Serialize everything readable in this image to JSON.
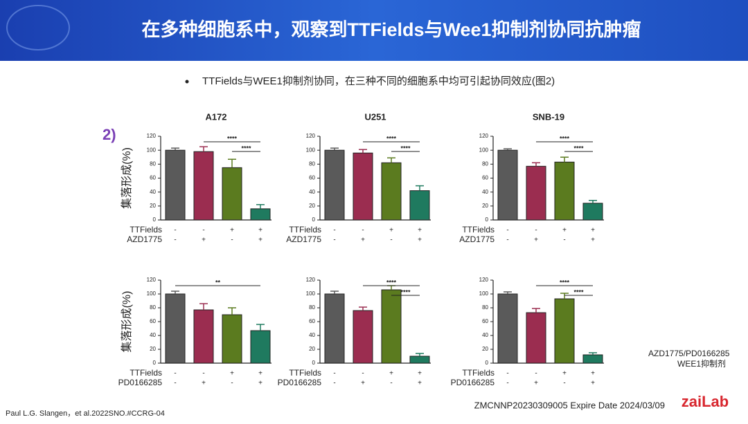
{
  "header": {
    "title": "在多种细胞系中，观察到TTFields与Wee1抑制剂协同抗肿瘤"
  },
  "bullet": "TTFields与WEE1抑制剂协同，在三种不同的细胞系中均可引起协同效应(图2)",
  "panel_label": "2)",
  "ylabel": "集落形成(%)",
  "chart_data": [
    {
      "type": "bar",
      "title": "A172",
      "values": [
        100,
        98,
        75,
        16
      ],
      "errors": [
        3,
        7,
        12,
        6
      ],
      "colors": [
        "#5a5a5a",
        "#9b2d50",
        "#5b7b1f",
        "#1f7a5f"
      ],
      "ylim": [
        0,
        120
      ],
      "yticks": [
        0,
        20,
        40,
        60,
        80,
        100,
        120
      ],
      "treatments": [
        {
          "name": "TTFields",
          "signs": [
            "-",
            "-",
            "+",
            "+"
          ]
        },
        {
          "name": "AZD1775",
          "signs": [
            "-",
            "+",
            "-",
            "+"
          ]
        }
      ],
      "significance": [
        {
          "label": "****",
          "from": 1,
          "to": 3
        },
        {
          "label": "****",
          "from": 2,
          "to": 3
        }
      ]
    },
    {
      "type": "bar",
      "title": "U251",
      "values": [
        100,
        96,
        82,
        42
      ],
      "errors": [
        3,
        5,
        7,
        7
      ],
      "colors": [
        "#5a5a5a",
        "#9b2d50",
        "#5b7b1f",
        "#1f7a5f"
      ],
      "ylim": [
        0,
        120
      ],
      "yticks": [
        0,
        20,
        40,
        60,
        80,
        100,
        120
      ],
      "treatments": [
        {
          "name": "TTFields",
          "signs": [
            "-",
            "-",
            "+",
            "+"
          ]
        },
        {
          "name": "AZD1775",
          "signs": [
            "-",
            "+",
            "-",
            "+"
          ]
        }
      ],
      "significance": [
        {
          "label": "****",
          "from": 1,
          "to": 3
        },
        {
          "label": "****",
          "from": 2,
          "to": 3
        }
      ]
    },
    {
      "type": "bar",
      "title": "SNB-19",
      "values": [
        100,
        77,
        83,
        24
      ],
      "errors": [
        2,
        5,
        7,
        4
      ],
      "colors": [
        "#5a5a5a",
        "#9b2d50",
        "#5b7b1f",
        "#1f7a5f"
      ],
      "ylim": [
        0,
        120
      ],
      "yticks": [
        0,
        20,
        40,
        60,
        80,
        100,
        120
      ],
      "treatments": [
        {
          "name": "TTFields",
          "signs": [
            "-",
            "-",
            "+",
            "+"
          ]
        },
        {
          "name": "AZD1775",
          "signs": [
            "-",
            "+",
            "-",
            "+"
          ]
        }
      ],
      "significance": [
        {
          "label": "****",
          "from": 1,
          "to": 3
        },
        {
          "label": "****",
          "from": 2,
          "to": 3
        }
      ]
    },
    {
      "type": "bar",
      "values": [
        100,
        77,
        70,
        47
      ],
      "errors": [
        4,
        9,
        10,
        9
      ],
      "colors": [
        "#5a5a5a",
        "#9b2d50",
        "#5b7b1f",
        "#1f7a5f"
      ],
      "ylim": [
        0,
        120
      ],
      "yticks": [
        0,
        20,
        40,
        60,
        80,
        100,
        120
      ],
      "treatments": [
        {
          "name": "TTFields",
          "signs": [
            "-",
            "-",
            "+",
            "+"
          ]
        },
        {
          "name": "PD0166285",
          "signs": [
            "-",
            "+",
            "-",
            "+"
          ]
        }
      ],
      "significance": [
        {
          "label": "**",
          "from": 0,
          "to": 3
        }
      ]
    },
    {
      "type": "bar",
      "values": [
        100,
        76,
        106,
        10
      ],
      "errors": [
        4,
        5,
        6,
        4
      ],
      "colors": [
        "#5a5a5a",
        "#9b2d50",
        "#5b7b1f",
        "#1f7a5f"
      ],
      "ylim": [
        0,
        120
      ],
      "yticks": [
        0,
        20,
        40,
        60,
        80,
        100,
        120
      ],
      "treatments": [
        {
          "name": "TTFields",
          "signs": [
            "-",
            "-",
            "+",
            "+"
          ]
        },
        {
          "name": "PD0166285",
          "signs": [
            "-",
            "+",
            "-",
            "+"
          ]
        }
      ],
      "significance": [
        {
          "label": "****",
          "from": 1,
          "to": 3
        },
        {
          "label": "****",
          "from": 2,
          "to": 3
        }
      ]
    },
    {
      "type": "bar",
      "values": [
        100,
        73,
        93,
        12
      ],
      "errors": [
        3,
        6,
        8,
        3
      ],
      "colors": [
        "#5a5a5a",
        "#9b2d50",
        "#5b7b1f",
        "#1f7a5f"
      ],
      "ylim": [
        0,
        120
      ],
      "yticks": [
        0,
        20,
        40,
        60,
        80,
        100,
        120
      ],
      "treatments": [
        {
          "name": "TTFields",
          "signs": [
            "-",
            "-",
            "+",
            "+"
          ]
        },
        {
          "name": "PD0166285",
          "signs": [
            "-",
            "+",
            "-",
            "+"
          ]
        }
      ],
      "significance": [
        {
          "label": "****",
          "from": 1,
          "to": 3
        },
        {
          "label": "****",
          "from": 2,
          "to": 3
        }
      ]
    }
  ],
  "note": [
    "AZD1775/PD0166285",
    "WEE1抑制剂"
  ],
  "footer": {
    "reference": "Paul L.G. Slangen，et al.2022SNO.#CCRG-04",
    "code": "ZMCNNP20230309005 Expire Date 2024/03/09",
    "logo": "zaiLab"
  }
}
